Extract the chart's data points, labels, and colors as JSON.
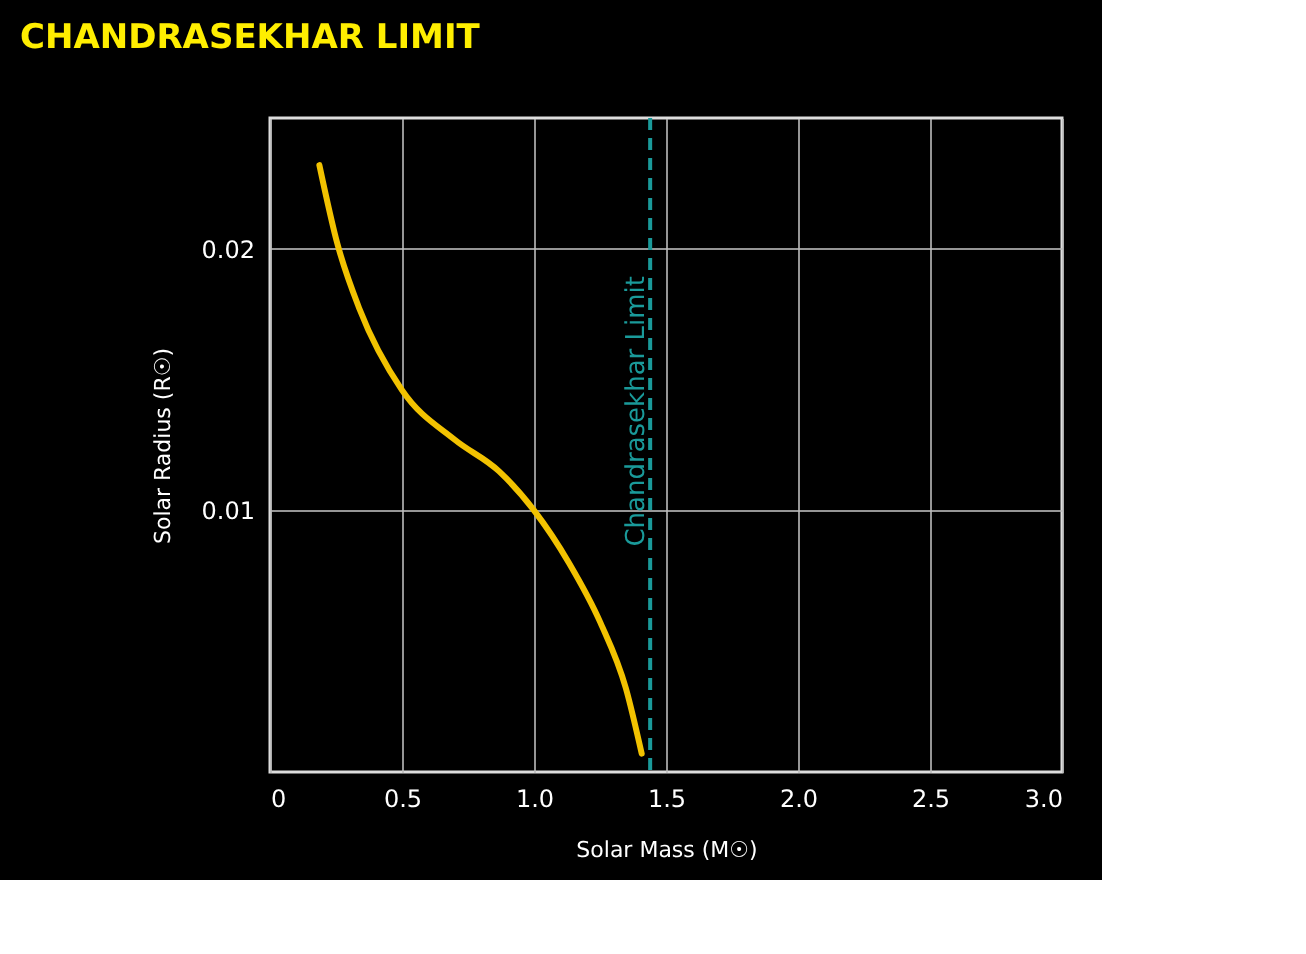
{
  "chart_data": {
    "type": "line",
    "title": "CHANDRASEKHAR LIMIT",
    "xlabel": "Solar Mass (M☉)",
    "ylabel": "Solar Radius (R☉)",
    "series": [
      {
        "color": "#f2c200",
        "x": [
          0.187,
          0.255,
          0.339,
          0.5,
          0.7,
          0.867,
          1.0,
          1.132,
          1.252,
          1.348,
          1.408
        ],
        "values": [
          0.0232,
          0.0202,
          0.0177,
          0.0146,
          0.0127,
          0.0115,
          0.01,
          0.008,
          0.0057,
          0.0032,
          0.0007
        ]
      }
    ],
    "xlim": [
      0,
      3
    ],
    "xticks": [
      0,
      0.5,
      {
        "value": 1,
        "label": "1.0"
      },
      1.5,
      {
        "value": 2,
        "label": "2.0"
      },
      2.5,
      {
        "value": 3,
        "label": "3.0"
      }
    ],
    "ylim": [
      0,
      0.025
    ],
    "yticks": [
      0.01,
      0.02
    ],
    "ref_lines": [
      {
        "axis": "x",
        "value": 1.44,
        "label": "Chandrasekhar Limit",
        "color": "#1a9a9a",
        "line_style": "dashed"
      }
    ],
    "grid": true,
    "marker": "none",
    "line_style": "solid"
  }
}
